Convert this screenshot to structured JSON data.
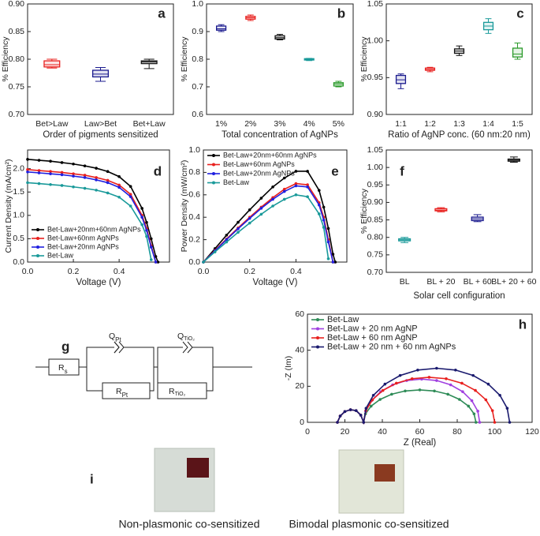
{
  "chart_data": [
    {
      "type": "box",
      "panel_label": "a",
      "xlabel": "Order of pigments sensitized",
      "ylabel": "% Efficiency",
      "categories": [
        "Bet>Law",
        "Law>Bet",
        "Bet+Law"
      ],
      "min": [
        0.784,
        0.76,
        0.783
      ],
      "q1": [
        0.786,
        0.768,
        0.792
      ],
      "median": [
        0.79,
        0.773,
        0.795
      ],
      "q3": [
        0.797,
        0.78,
        0.797
      ],
      "max": [
        0.8,
        0.785,
        0.8
      ],
      "colors": [
        "#e8201e",
        "#1a1a8e",
        "#111111"
      ],
      "ylim": [
        0.7,
        0.9
      ],
      "yticks": [
        {
          "value": 0.7,
          "label": "0.70"
        },
        0.75,
        {
          "value": 0.8,
          "label": "0.80"
        },
        0.85,
        {
          "value": 0.9,
          "label": "0.90"
        }
      ]
    },
    {
      "type": "box",
      "panel_label": "b",
      "xlabel": "Total concentration of AgNPs",
      "ylabel": "% Efficiency",
      "categories": [
        "1%",
        "2%",
        "3%",
        "4%",
        "5%"
      ],
      "min": [
        0.9,
        0.94,
        0.87,
        0.795,
        0.7
      ],
      "q1": [
        0.905,
        0.945,
        0.873,
        0.797,
        0.703
      ],
      "median": [
        0.91,
        0.95,
        0.878,
        0.8,
        0.71
      ],
      "q3": [
        0.92,
        0.955,
        0.885,
        0.802,
        0.715
      ],
      "max": [
        0.925,
        0.96,
        0.89,
        0.803,
        0.72
      ],
      "colors": [
        "#1a1a8e",
        "#e8201e",
        "#111111",
        "#1a9a9a",
        "#2a9a2a"
      ],
      "ylim": [
        0.6,
        1.0
      ],
      "yticks": [
        0.6,
        0.7,
        0.8,
        0.9,
        {
          "value": 1.0,
          "label": "1.0"
        }
      ]
    },
    {
      "type": "box",
      "panel_label": "c",
      "xlabel": "Ratio of AgNP conc. (60 nm:20 nm)",
      "ylabel": "% Efficiency",
      "categories": [
        "1:1",
        "1:2",
        "1:3",
        "1:4",
        "1:5"
      ],
      "min": [
        0.935,
        0.958,
        0.98,
        1.01,
        0.975
      ],
      "q1": [
        0.942,
        0.96,
        0.983,
        1.015,
        0.978
      ],
      "median": [
        0.947,
        0.961,
        0.986,
        1.02,
        0.982
      ],
      "q3": [
        0.953,
        0.963,
        0.989,
        1.025,
        0.99
      ],
      "max": [
        0.955,
        0.964,
        0.993,
        1.03,
        0.997
      ],
      "colors": [
        "#1a1a8e",
        "#e8201e",
        "#111111",
        "#1a9a9a",
        "#2a9a2a"
      ],
      "ylim": [
        0.9,
        1.05
      ],
      "yticks": [
        {
          "value": 0.9,
          "label": "0.90"
        },
        0.95,
        {
          "value": 1.0,
          "label": "1.00"
        },
        1.05
      ]
    },
    {
      "type": "line",
      "panel_label": "d",
      "xlabel": "Voltage (V)",
      "ylabel": "Current Density (mA/cm²)",
      "legend": "lower left",
      "x": [
        0,
        0.05,
        0.1,
        0.15,
        0.2,
        0.25,
        0.3,
        0.35,
        0.4,
        0.45,
        0.5,
        0.52,
        0.54,
        0.56,
        0.57
      ],
      "series": [
        {
          "name": "Bet-Law+20nm+60nm AgNPs",
          "color": "#000000",
          "values": [
            2.2,
            2.18,
            2.16,
            2.13,
            2.1,
            2.06,
            2.01,
            1.94,
            1.83,
            1.62,
            1.15,
            0.85,
            0.5,
            0.12,
            0
          ]
        },
        {
          "name": "Bet-Law+60nm AgNPs",
          "color": "#e8201e",
          "values": [
            1.98,
            1.96,
            1.94,
            1.92,
            1.89,
            1.86,
            1.81,
            1.75,
            1.65,
            1.45,
            1.0,
            0.72,
            0.35,
            0,
            null
          ]
        },
        {
          "name": "Bet-Law+20nm AgNPs",
          "color": "#2020e0",
          "values": [
            1.93,
            1.91,
            1.89,
            1.87,
            1.84,
            1.81,
            1.76,
            1.7,
            1.6,
            1.4,
            0.96,
            0.68,
            0.32,
            0,
            null
          ]
        },
        {
          "name": "Bet-Law",
          "color": "#1a9a9a",
          "values": [
            1.7,
            1.68,
            1.66,
            1.64,
            1.61,
            1.58,
            1.54,
            1.48,
            1.39,
            1.2,
            0.8,
            0.55,
            0.05,
            null,
            null
          ]
        }
      ],
      "xlim": [
        0,
        0.62
      ],
      "xticks": [
        {
          "value": 0,
          "label": "0.0"
        },
        0.2,
        0.4
      ],
      "ylim": [
        0,
        2.4
      ],
      "yticks": [
        {
          "value": 0,
          "label": "0.0"
        },
        0.5,
        {
          "value": 1.0,
          "label": "1.0"
        },
        1.5,
        {
          "value": 2.0,
          "label": "2.0"
        }
      ]
    },
    {
      "type": "line",
      "panel_label": "e",
      "xlabel": "Voltage (V)",
      "ylabel": "Power Density (mW/cm²)",
      "legend": "upper left",
      "x": [
        0,
        0.05,
        0.1,
        0.15,
        0.2,
        0.25,
        0.3,
        0.35,
        0.4,
        0.45,
        0.5,
        0.52,
        0.54,
        0.56,
        0.57
      ],
      "series": [
        {
          "name": "Bet-Law+20nm+60nm AgNPs",
          "color": "#000000",
          "values": [
            0,
            0.12,
            0.24,
            0.355,
            0.466,
            0.57,
            0.67,
            0.75,
            0.81,
            0.81,
            0.64,
            0.49,
            0.3,
            0.07,
            0
          ]
        },
        {
          "name": "Bet-Law+60nm AgNPs",
          "color": "#e8201e",
          "values": [
            0,
            0.104,
            0.206,
            0.305,
            0.4,
            0.49,
            0.575,
            0.65,
            0.7,
            0.69,
            0.53,
            0.4,
            0.2,
            0,
            null
          ]
        },
        {
          "name": "Bet-Law+20nm AgNPs",
          "color": "#2020e0",
          "values": [
            0,
            0.1,
            0.2,
            0.297,
            0.39,
            0.48,
            0.56,
            0.63,
            0.68,
            0.67,
            0.51,
            0.375,
            0.18,
            0,
            null
          ]
        },
        {
          "name": "Bet-Law",
          "color": "#1a9a9a",
          "values": [
            0,
            0.091,
            0.179,
            0.266,
            0.348,
            0.427,
            0.5,
            0.56,
            0.6,
            0.583,
            0.43,
            0.31,
            0.03,
            null,
            null
          ]
        }
      ],
      "xlim": [
        0,
        0.62
      ],
      "xticks": [
        {
          "value": 0,
          "label": "0.0"
        },
        0.2,
        0.4
      ],
      "ylim": [
        0,
        1.0
      ],
      "yticks": [
        {
          "value": 0,
          "label": "0.0"
        },
        0.2,
        0.4,
        0.6,
        0.8,
        {
          "value": 1.0,
          "label": "1.0"
        }
      ]
    },
    {
      "type": "box",
      "panel_label": "f",
      "xlabel": "Solar cell configuration",
      "ylabel": "% Efficiency",
      "categories": [
        "BL",
        "BL + 20",
        "BL + 60",
        "BL+ 20 + 60"
      ],
      "min": [
        0.785,
        0.873,
        0.845,
        1.015
      ],
      "q1": [
        0.79,
        0.876,
        0.848,
        1.018
      ],
      "median": [
        0.793,
        0.878,
        0.853,
        1.021
      ],
      "q3": [
        0.796,
        0.882,
        0.858,
        1.024
      ],
      "max": [
        0.8,
        0.885,
        0.865,
        1.03
      ],
      "colors": [
        "#1a9a9a",
        "#e8201e",
        "#1a1a8e",
        "#111111"
      ],
      "ylim": [
        0.7,
        1.05
      ],
      "yticks": [
        {
          "value": 0.7,
          "label": "0.70"
        },
        0.75,
        {
          "value": 0.8,
          "label": "0.80"
        },
        0.85,
        {
          "value": 0.9,
          "label": "0.90"
        },
        0.95,
        {
          "value": 1.0,
          "label": "1.00"
        },
        1.05
      ]
    },
    {
      "type": "line",
      "panel_label": "h",
      "xlabel": "Z (Real)",
      "ylabel": "-Z (Im)",
      "legend": "upper left",
      "series": [
        {
          "name": "Bet-Law",
          "color": "#2e8b57",
          "x": [
            16,
            17.5,
            20,
            23,
            26,
            28.5,
            30,
            31,
            34,
            38.8,
            45,
            52.2,
            60,
            67.8,
            75,
            81.2,
            86,
            89,
            90
          ],
          "values": [
            0,
            3.5,
            6,
            7,
            6.5,
            4,
            0,
            4.7,
            9,
            12.7,
            15.6,
            17.4,
            18,
            17.4,
            15.6,
            12.7,
            9,
            4.7,
            0
          ]
        },
        {
          "name": "Bet-Law + 20 nm AgNP",
          "color": "#a040e0",
          "x": [
            16,
            17.5,
            20,
            23,
            26,
            28.5,
            30,
            31.1,
            34.2,
            39.1,
            45.5,
            53,
            61,
            69,
            76.5,
            82.9,
            87.8,
            91,
            92
          ],
          "values": [
            0,
            3.5,
            6,
            7,
            6.5,
            4,
            0,
            6.2,
            12,
            17,
            20.8,
            23.2,
            24,
            23.2,
            20.8,
            17,
            12,
            6.2,
            0
          ]
        },
        {
          "name": "Bet-Law + 60 nm AgNP",
          "color": "#e8201e",
          "x": [
            16,
            17.5,
            20,
            23,
            26,
            28.5,
            30,
            31.2,
            34.7,
            40.3,
            47.5,
            55.9,
            65,
            74.1,
            82.5,
            89.7,
            95.3,
            98.8,
            100
          ],
          "values": [
            0,
            3.5,
            6,
            7,
            6.5,
            4,
            0,
            6.5,
            12.5,
            17.7,
            21.7,
            24.2,
            25,
            24.2,
            21.7,
            17.7,
            12.5,
            6.5,
            0
          ]
        },
        {
          "name": "Bet-Law + 20 nm + 60 nm AgNPs",
          "color": "#1a1a6e",
          "x": [
            16,
            17.5,
            20,
            23,
            26,
            28.5,
            30,
            31.3,
            35.2,
            41.4,
            49.5,
            58.9,
            69,
            79.1,
            88.5,
            96.6,
            102.8,
            106.7,
            108
          ],
          "values": [
            0,
            3.5,
            6,
            7,
            6.5,
            4,
            0,
            7.8,
            15,
            21.2,
            26,
            29,
            30,
            29,
            26,
            21.2,
            15,
            7.8,
            0
          ]
        }
      ],
      "xlim": [
        0,
        120
      ],
      "xticks": [
        0,
        20,
        40,
        60,
        80,
        100,
        120
      ],
      "ylim": [
        0,
        60
      ],
      "yticks": [
        0,
        20,
        40,
        60
      ]
    }
  ],
  "circuit": {
    "panel_label": "g",
    "rs": {
      "main": "R",
      "sub": "s"
    },
    "qpt": {
      "main": "Q",
      "sub": "Pt"
    },
    "rpt": {
      "main": "R",
      "sub": "Pt"
    },
    "qtio2": {
      "main": "Q",
      "sub": "TiO₂"
    },
    "rtio2": {
      "main": "R",
      "sub": "TiO₂"
    }
  },
  "photos": {
    "panel_label": "i",
    "left_caption": "Non-plasmonic co-sensitized",
    "right_caption": "Bimodal plasmonic co-sensitized"
  }
}
